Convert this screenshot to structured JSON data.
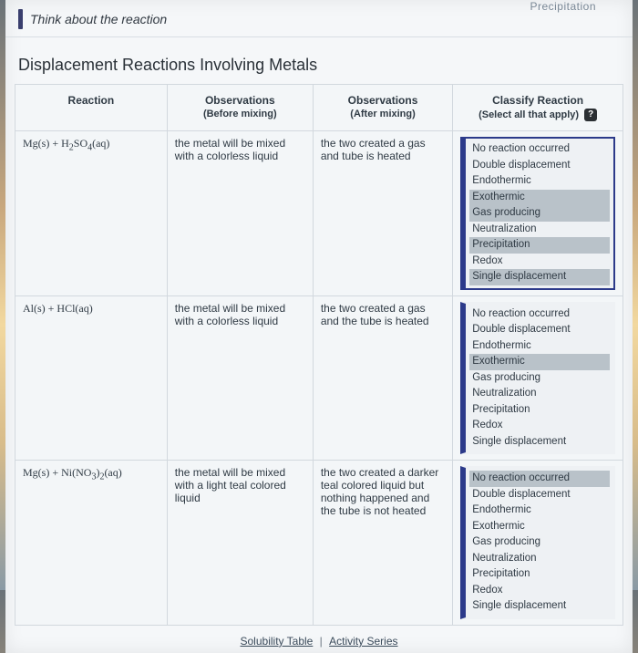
{
  "topLabel": "Precipitation",
  "prompt": "Think about the reaction",
  "sectionTitle": "Displacement Reactions Involving Metals",
  "headers": {
    "reaction": "Reaction",
    "before": {
      "line1": "Observations",
      "line2": "(Before mixing)"
    },
    "after": {
      "line1": "Observations",
      "line2": "(After mixing)"
    },
    "classify": {
      "line1": "Classify Reaction",
      "line2": "(Select all that apply)"
    }
  },
  "helpGlyph": "?",
  "options": [
    "No reaction occurred",
    "Double displacement",
    "Endothermic",
    "Exothermic",
    "Gas producing",
    "Neutralization",
    "Precipitation",
    "Redox",
    "Single displacement"
  ],
  "rows": [
    {
      "reactionHtml": "Mg(s) + H<sub>2</sub>SO<sub>4</sub>(aq)",
      "before": "the metal will be mixed with a colorless liquid",
      "after": "the two created a gas and tube is heated",
      "selected": [
        3,
        4,
        6,
        8
      ],
      "boxStyle": "border"
    },
    {
      "reactionHtml": "Al(s) + HCl(aq)",
      "before": "the metal will be mixed with a colorless liquid",
      "after": "the two created a gas and the tube is heated",
      "selected": [
        3
      ],
      "boxStyle": "noborder"
    },
    {
      "reactionHtml": "Mg(s) + Ni(NO<sub>3</sub>)<sub>2</sub>(aq)",
      "before": "the metal will be mixed with a light teal colored liquid",
      "after": "the two created a darker teal colored liquid but nothing happened and the tube is not heated",
      "selected": [
        0
      ],
      "boxStyle": "noborder"
    }
  ],
  "footer": {
    "solubility": "Solubility Table",
    "activity": "Activity Series",
    "sep": "|"
  }
}
